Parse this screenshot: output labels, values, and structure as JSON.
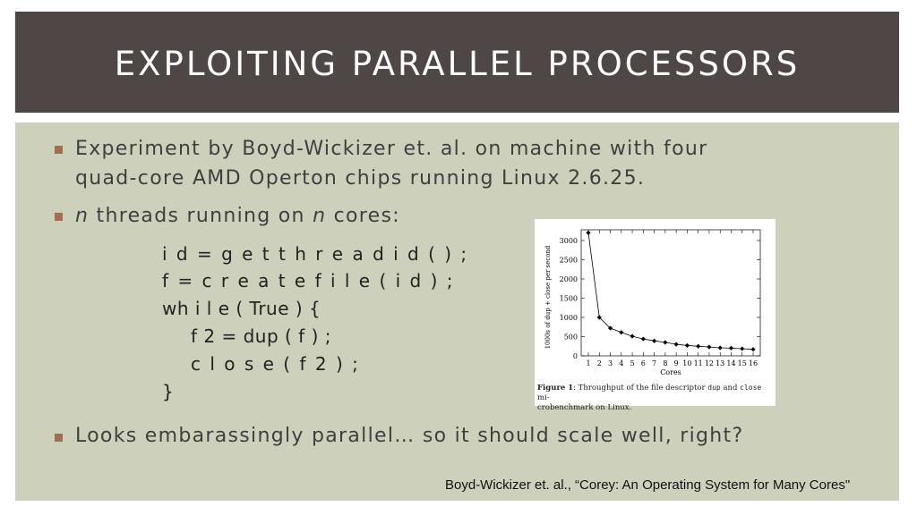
{
  "slide": {
    "title": "EXPLOITING PARALLEL PROCESSORS",
    "bullets": [
      {
        "line1": "Experiment by Boyd-Wickizer et. al. on machine with four",
        "line2": "quad-core AMD Operton chips running Linux 2.6.25."
      },
      {
        "n1": "n",
        "mid": " threads running on ",
        "n2": "n",
        "end": " cores:"
      },
      {
        "text": "Looks embarassingly parallel… so it should scale well, right?"
      }
    ],
    "code": [
      "i d = g e t t h r e a d i d ( ) ;",
      "f = c r e a t e f i l e ( i d ) ;",
      "wh i l e ( True ) {",
      "f 2 = dup ( f ) ;",
      "c l o s e ( f 2 ) ;",
      "}"
    ],
    "source": "Boyd-Wickizer et. al., “Corey: An Operating System for Many Cores\""
  },
  "chart_data": {
    "type": "line",
    "x": [
      1,
      2,
      3,
      4,
      5,
      6,
      7,
      8,
      9,
      10,
      11,
      12,
      13,
      14,
      15,
      16
    ],
    "series": [
      {
        "values": [
          3200,
          1000,
          720,
          610,
          510,
          440,
          390,
          350,
          300,
          270,
          250,
          230,
          210,
          200,
          185,
          170
        ]
      }
    ],
    "xlabel": "Cores",
    "ylabel": "1000s of dup + close per second",
    "ylim": [
      0,
      3000
    ],
    "yticks": [
      0,
      500,
      1000,
      1500,
      2000,
      2500,
      3000
    ],
    "xticks": [
      1,
      2,
      3,
      4,
      5,
      6,
      7,
      8,
      9,
      10,
      11,
      12,
      13,
      14,
      15,
      16
    ],
    "caption": {
      "label": "Figure 1",
      "before": ":   Throughput of the file descriptor ",
      "code1": "dup",
      "and": " and ",
      "code2": "close",
      "after1": " mi-",
      "line2": "crobenchmark on Linux."
    },
    "colors": {
      "line": "#000000",
      "marker": "#000000"
    }
  }
}
